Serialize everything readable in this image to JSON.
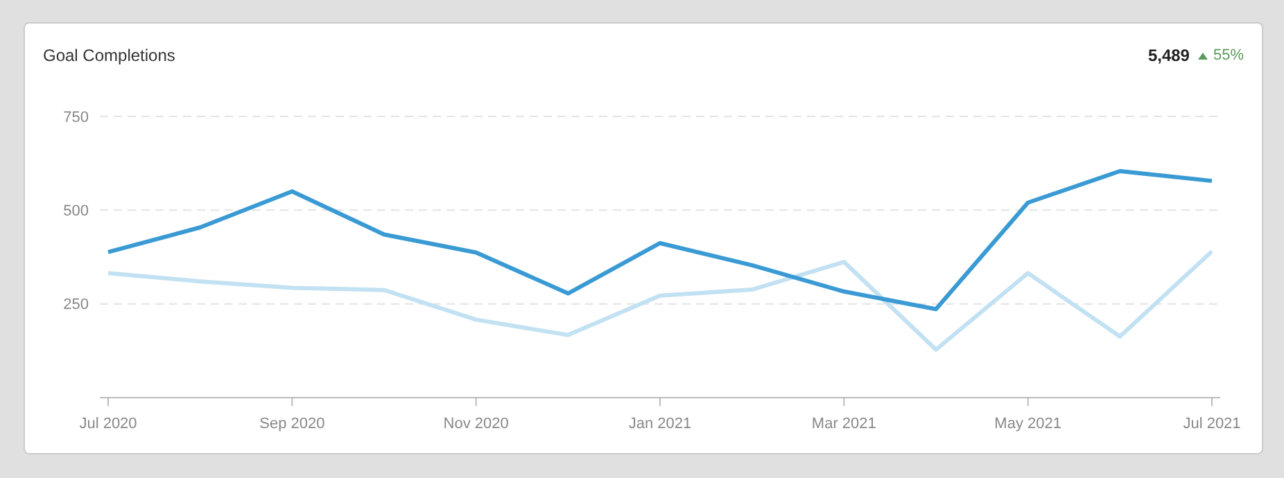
{
  "chart_data": {
    "type": "line",
    "title": "Goal Completions",
    "annotations": [
      "5,489",
      "55%"
    ],
    "categories": [
      "Jul 2020",
      null,
      "Sep 2020",
      null,
      "Nov 2020",
      null,
      "Jan 2021",
      null,
      "Mar 2021",
      null,
      "May 2021",
      null,
      "Jul 2021"
    ],
    "series": [
      {
        "color": "#3a9ad4",
        "values": [
          388,
          454,
          550,
          435,
          387,
          278,
          412,
          353,
          283,
          236,
          520,
          604,
          578
        ]
      },
      {
        "color": "#c2e1f2",
        "values": [
          332,
          310,
          293,
          287,
          208,
          167,
          272,
          288,
          362,
          128,
          332,
          163,
          390
        ]
      }
    ],
    "ylim": [
      0,
      750
    ],
    "yticks": [
      250,
      500,
      750
    ],
    "grid": "y",
    "marker": "none",
    "line_style": "solid"
  }
}
